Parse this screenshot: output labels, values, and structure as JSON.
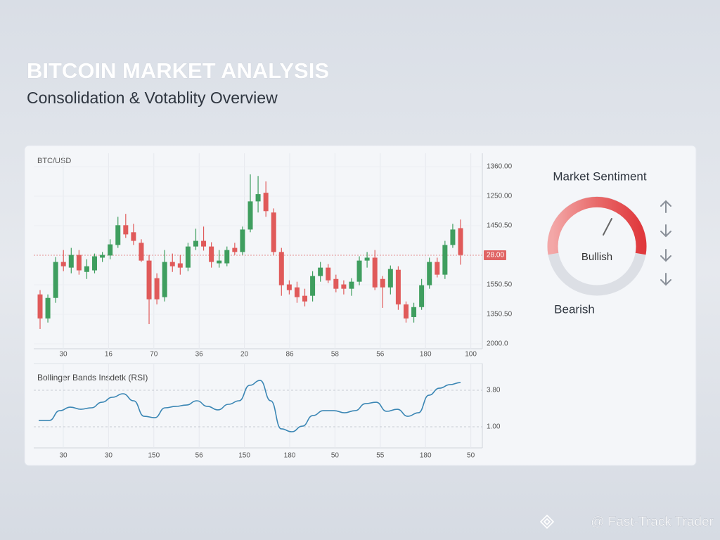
{
  "header": {
    "title": "BITCOIN MARKET ANALYSIS",
    "subtitle": "Consolidation & Votablity Overview"
  },
  "chart_data": [
    {
      "type": "candlestick",
      "label": "BTC/USD",
      "ylim": [
        0,
        100
      ],
      "y_labels": [
        "1360.00",
        "1250.00",
        "1450.50",
        "28.00",
        "1550.50",
        "1350.50",
        "2000.0"
      ],
      "x_labels": [
        "30",
        "16",
        "70",
        "36",
        "20",
        "86",
        "58",
        "56",
        "180",
        "100"
      ],
      "up_color": "#3f9e5f",
      "down_color": "#e05a5a",
      "open": [
        27.8,
        15.5,
        26.0,
        44.4,
        41.5,
        48.0,
        39.3,
        40.1,
        46.6,
        47.7,
        53.1,
        63.2,
        59.6,
        54.2,
        45.1,
        36.1,
        26.4,
        44.4,
        43.7,
        41.5,
        52.3,
        55.2,
        52.3,
        43.7,
        43.7,
        51.6,
        49.5,
        61.0,
        75.4,
        79.8,
        69.7,
        49.5,
        32.9,
        31.4,
        27.1,
        27.1,
        37.2,
        41.5,
        35.7,
        32.9,
        30.7,
        34.3,
        45.1,
        46.6,
        35.7,
        31.4,
        40.4,
        22.7,
        16.2,
        21.3,
        32.5,
        44.4,
        37.9,
        53.1,
        61.7
      ],
      "close": [
        15.5,
        26.0,
        44.4,
        42.2,
        48.0,
        40.1,
        42.2,
        47.3,
        48.0,
        53.4,
        63.2,
        58.5,
        55.2,
        45.1,
        25.3,
        25.3,
        44.4,
        42.2,
        41.5,
        52.3,
        55.2,
        52.3,
        44.4,
        45.1,
        50.5,
        49.5,
        61.0,
        75.4,
        79.1,
        70.4,
        49.5,
        32.5,
        30.0,
        26.4,
        24.2,
        37.2,
        41.5,
        35.0,
        30.7,
        30.7,
        34.3,
        45.1,
        46.6,
        31.4,
        31.4,
        40.8,
        22.7,
        15.5,
        21.3,
        32.5,
        44.4,
        37.9,
        53.1,
        61.0,
        48.0
      ],
      "high": [
        30.0,
        27.8,
        46.9,
        50.5,
        51.6,
        50.5,
        45.8,
        48.7,
        49.5,
        56.0,
        67.5,
        69.0,
        63.9,
        56.0,
        48.0,
        38.6,
        50.5,
        48.7,
        48.0,
        54.2,
        61.4,
        62.5,
        54.5,
        50.5,
        52.3,
        54.2,
        62.5,
        89.2,
        88.4,
        85.6,
        71.8,
        51.6,
        35.0,
        34.3,
        30.7,
        39.7,
        44.4,
        43.3,
        37.9,
        35.0,
        36.1,
        47.3,
        49.5,
        50.5,
        37.2,
        42.6,
        42.2,
        24.2,
        23.5,
        35.7,
        46.6,
        46.6,
        55.2,
        63.9,
        66.1
      ],
      "low": [
        10.1,
        13.4,
        23.5,
        39.7,
        38.6,
        37.9,
        35.7,
        38.6,
        44.4,
        45.8,
        51.6,
        56.7,
        53.1,
        44.4,
        12.6,
        22.7,
        24.2,
        39.3,
        37.9,
        39.7,
        50.5,
        50.2,
        41.5,
        41.5,
        42.2,
        48.0,
        48.0,
        59.6,
        69.7,
        67.5,
        48.0,
        27.1,
        27.8,
        23.5,
        21.7,
        24.2,
        34.3,
        33.6,
        28.9,
        27.8,
        27.1,
        32.5,
        41.5,
        30.0,
        20.9,
        27.8,
        19.9,
        13.4,
        13.4,
        19.9,
        30.7,
        36.5,
        35.7,
        51.6,
        43.0
      ]
    },
    {
      "type": "line",
      "label": "Bollinger Bands Insdetk (RSI)",
      "ylim": [
        0,
        100
      ],
      "y_labels": [
        "3.80",
        "1.00"
      ],
      "x_labels": [
        "30",
        "30",
        "150",
        "56",
        "150",
        "180",
        "50",
        "55",
        "180",
        "50"
      ],
      "color": "#3a86b4",
      "values": [
        32.8,
        32.8,
        44.5,
        48.7,
        46.2,
        47.9,
        54.6,
        60.5,
        64.7,
        56.3,
        37.8,
        36.1,
        47.9,
        49.6,
        51.2,
        56.3,
        49.6,
        45.4,
        52.1,
        56.3,
        74.8,
        80.6,
        56.3,
        22.7,
        19.3,
        26.0,
        38.6,
        44.5,
        44.5,
        42.0,
        44.5,
        52.9,
        54.6,
        43.7,
        46.2,
        37.8,
        42.0,
        63.0,
        71.4,
        75.6,
        78.1
      ]
    }
  ],
  "sentiment": {
    "title": "Market Sentiment",
    "reading": "Bullish",
    "opposite": "Bearish"
  },
  "watermark": "@ Fast-Track Trader"
}
